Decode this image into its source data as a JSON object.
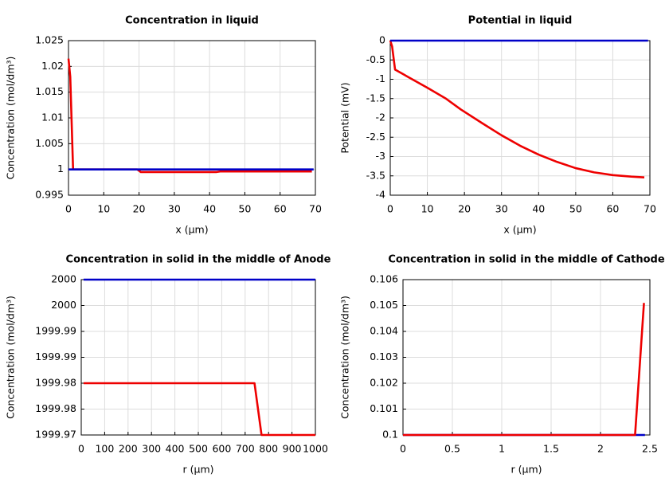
{
  "chart_data": [
    {
      "type": "line",
      "title": "Concentration in liquid",
      "xlabel": "x (µm)",
      "ylabel": "Concentration (mol/dm³)",
      "xlim": [
        0,
        70
      ],
      "ylim": [
        0.995,
        1.025
      ],
      "xticks": [
        0,
        10,
        20,
        30,
        40,
        50,
        60,
        70
      ],
      "yticks": [
        0.995,
        1,
        1.005,
        1.01,
        1.015,
        1.02,
        1.025
      ],
      "grid": true,
      "series": [
        {
          "color": "#ee0000",
          "x": [
            0,
            0.5,
            1.3,
            19.5,
            20.5,
            42,
            43,
            69
          ],
          "values": [
            1.0215,
            1.018,
            1,
            1,
            0.9995,
            0.9995,
            0.9996,
            0.9996
          ]
        },
        {
          "color": "#0000c8",
          "x": [
            0,
            69.5
          ],
          "values": [
            1,
            1
          ]
        }
      ]
    },
    {
      "type": "line",
      "title": "Potential in liquid",
      "xlabel": "x (µm)",
      "ylabel": "Potential (mV)",
      "xlim": [
        0,
        70
      ],
      "ylim": [
        -4,
        0
      ],
      "xticks": [
        0,
        10,
        20,
        30,
        40,
        50,
        60,
        70
      ],
      "yticks": [
        0,
        -0.5,
        -1,
        -1.5,
        -2,
        -2.5,
        -3,
        -3.5,
        -4
      ],
      "grid": true,
      "series": [
        {
          "color": "#ee0000",
          "x": [
            0,
            0.5,
            1.3,
            5,
            10,
            15,
            19,
            25,
            30,
            35,
            40,
            45,
            50,
            55,
            60,
            65,
            68.5
          ],
          "values": [
            0,
            -0.15,
            -0.75,
            -0.95,
            -1.22,
            -1.5,
            -1.78,
            -2.15,
            -2.45,
            -2.72,
            -2.95,
            -3.14,
            -3.3,
            -3.41,
            -3.48,
            -3.52,
            -3.54
          ]
        },
        {
          "color": "#0000c8",
          "x": [
            0,
            69.5
          ],
          "values": [
            0,
            0
          ]
        }
      ]
    },
    {
      "type": "line",
      "title": "Concentration in solid in the middle of Anode",
      "xlabel": "r (µm)",
      "ylabel": "Concentration (mol/dm³)",
      "xlim": [
        0,
        1000
      ],
      "ylim": [
        1999.97,
        2000
      ],
      "xticks": [
        0,
        100,
        200,
        300,
        400,
        500,
        600,
        700,
        800,
        900,
        1000
      ],
      "yticks": [
        {
          "value": 2000,
          "label": "2000"
        },
        {
          "value": 1999.995,
          "label": "2000"
        },
        {
          "value": 1999.99,
          "label": "1999.99"
        },
        {
          "value": 1999.985,
          "label": "1999.99"
        },
        {
          "value": 1999.98,
          "label": "1999.98"
        },
        {
          "value": 1999.975,
          "label": "1999.98"
        },
        {
          "value": 1999.97,
          "label": "1999.97"
        }
      ],
      "grid": true,
      "series": [
        {
          "color": "#0000c8",
          "x": [
            10,
            1000
          ],
          "values": [
            2000,
            2000
          ]
        },
        {
          "color": "#ee0000",
          "x": [
            10,
            740,
            770,
            1000
          ],
          "values": [
            1999.98,
            1999.98,
            1999.97,
            1999.97
          ]
        }
      ]
    },
    {
      "type": "line",
      "title": "Concentration in solid in the middle of Cathode",
      "xlabel": "r (µm)",
      "ylabel": "Concentration (mol/dm³)",
      "xlim": [
        0,
        2.5
      ],
      "ylim": [
        0.1,
        0.106
      ],
      "xticks": [
        0,
        0.5,
        1,
        1.5,
        2,
        2.5
      ],
      "yticks": [
        0.1,
        0.101,
        0.102,
        0.103,
        0.104,
        0.105,
        0.106
      ],
      "grid": true,
      "series": [
        {
          "color": "#0000c8",
          "x": [
            0,
            2.45
          ],
          "values": [
            0.1,
            0.1
          ]
        },
        {
          "color": "#ee0000",
          "x": [
            0,
            2.35,
            2.44
          ],
          "values": [
            0.1,
            0.1,
            0.1051
          ]
        }
      ]
    }
  ]
}
